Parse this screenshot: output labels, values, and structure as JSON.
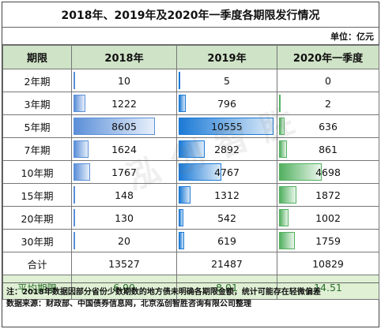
{
  "title": "2018年、2019年及2020年一季度各期限发行情况",
  "unit": "单位：亿元",
  "headers": [
    "期限",
    "2018年",
    "2019年",
    "2020年一季度"
  ],
  "rows": [
    {
      "label": "2年期",
      "v2018": "10",
      "v2019": "5",
      "v2020": "0"
    },
    {
      "label": "3年期",
      "v2018": "1222",
      "v2019": "796",
      "v2020": "2"
    },
    {
      "label": "5年期",
      "v2018": "8605",
      "v2019": "10555",
      "v2020": "636"
    },
    {
      "label": "7年期",
      "v2018": "1624",
      "v2019": "2892",
      "v2020": "861"
    },
    {
      "label": "10年期",
      "v2018": "1767",
      "v2019": "4767",
      "v2020": "4698"
    },
    {
      "label": "15年期",
      "v2018": "148",
      "v2019": "1312",
      "v2020": "1872"
    },
    {
      "label": "20年期",
      "v2018": "130",
      "v2019": "542",
      "v2020": "1002"
    },
    {
      "label": "30年期",
      "v2018": "20",
      "v2019": "619",
      "v2020": "1759"
    }
  ],
  "total": {
    "label": "合计",
    "v2018": "13527",
    "v2019": "21487",
    "v2020": "10829"
  },
  "average": {
    "label": "平均期限",
    "v2018": "6.00",
    "v2019": "8.01",
    "v2020": "14.51"
  },
  "watermark": "泓创智胜",
  "notes": [
    "注：2018年数据因部分省份少数期数的地方债未明确各期限金额，统计可能存在轻微偏差",
    "数据来源：财政部、中国债券信息网，北京泓创智胜咨询有限公司整理"
  ]
}
